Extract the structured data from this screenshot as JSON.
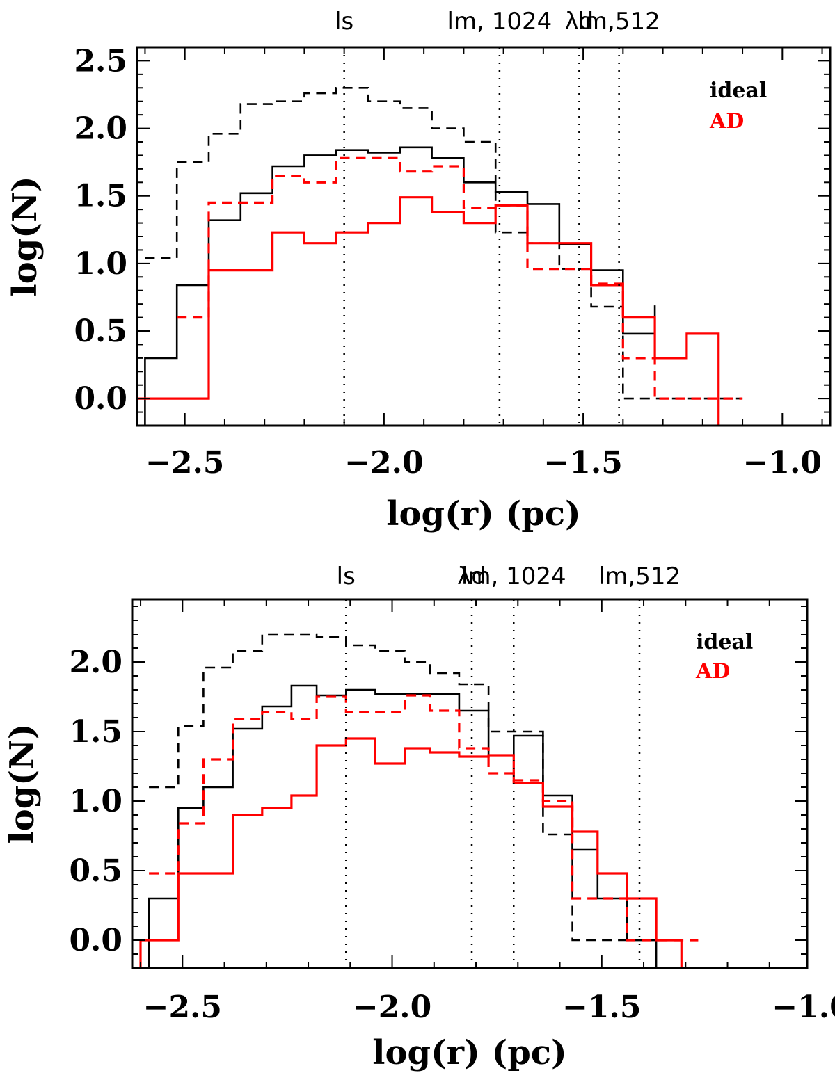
{
  "chart_data": [
    {
      "type": "histogram",
      "panel": "top",
      "xlabel": "log(r) (pc)",
      "ylabel": "log(N)",
      "xlim": [
        -2.62,
        -0.88
      ],
      "ylim": [
        -0.2,
        2.6
      ],
      "xticks": [
        -2.5,
        -2.0,
        -1.5,
        -1.0
      ],
      "xtick_labels": [
        "−2.5",
        "−2.0",
        "−1.5",
        "−1.0"
      ],
      "yticks": [
        0.0,
        0.5,
        1.0,
        1.5,
        2.0,
        2.5
      ],
      "ytick_labels": [
        "0.0",
        "0.5",
        "1.0",
        "1.5",
        "2.0",
        "2.5"
      ],
      "legend": [
        {
          "text": "ideal",
          "color": "#000000"
        },
        {
          "text": "AD",
          "color": "#ff0000"
        }
      ],
      "markers": [
        {
          "label": "ls",
          "x": -2.1
        },
        {
          "label": "lm, 1024",
          "x": -1.71
        },
        {
          "label": "λd",
          "x": -1.51
        },
        {
          "label": "lm,512",
          "x": -1.41
        }
      ],
      "series": [
        {
          "name": "ideal solid",
          "color": "#000000",
          "dash": "solid",
          "edges": [
            -2.6,
            -2.52,
            -2.44,
            -2.36,
            -2.28,
            -2.2,
            -2.12,
            -2.04,
            -1.96,
            -1.88,
            -1.8,
            -1.72,
            -1.64,
            -1.56,
            -1.48,
            -1.4,
            -1.32
          ],
          "values": [
            0.3,
            0.84,
            1.32,
            1.52,
            1.72,
            1.8,
            1.84,
            1.82,
            1.86,
            1.78,
            1.6,
            1.53,
            1.44,
            1.14,
            0.95,
            0.48,
            0.69
          ],
          "drop": -0.2
        },
        {
          "name": "ideal dashed",
          "color": "#000000",
          "dash": "dashed",
          "edges": [
            -2.6,
            -2.52,
            -2.44,
            -2.36,
            -2.28,
            -2.2,
            -2.12,
            -2.04,
            -1.96,
            -1.88,
            -1.8,
            -1.72,
            -1.64,
            -1.56,
            -1.48,
            -1.4,
            -1.32,
            -1.24,
            -1.16,
            -1.1
          ],
          "values": [
            1.04,
            1.75,
            1.96,
            2.18,
            2.2,
            2.26,
            2.3,
            2.2,
            2.15,
            2.0,
            1.9,
            1.23,
            1.15,
            0.96,
            0.68,
            0.0,
            0.0,
            0.0,
            0.0
          ]
        },
        {
          "name": "AD solid",
          "color": "#ff0000",
          "dash": "solid",
          "edges": [
            -2.62,
            -2.44,
            -2.36,
            -2.28,
            -2.2,
            -2.12,
            -2.04,
            -1.96,
            -1.88,
            -1.8,
            -1.72,
            -1.64,
            -1.56,
            -1.48,
            -1.4,
            -1.32,
            -1.24,
            -1.16
          ],
          "values": [
            0.0,
            0.95,
            0.95,
            1.23,
            1.15,
            1.23,
            1.3,
            1.49,
            1.38,
            1.3,
            1.43,
            1.15,
            1.15,
            0.84,
            0.6,
            0.3,
            0.48
          ],
          "drop": -0.2
        },
        {
          "name": "AD dashed",
          "color": "#ff0000",
          "dash": "dashed",
          "edges": [
            -2.52,
            -2.44,
            -2.36,
            -2.28,
            -2.2,
            -2.12,
            -2.04,
            -1.96,
            -1.88,
            -1.8,
            -1.72,
            -1.64,
            -1.56,
            -1.48,
            -1.4,
            -1.32,
            -1.24,
            -1.16,
            -1.1
          ],
          "values": [
            0.6,
            1.45,
            1.45,
            1.65,
            1.6,
            1.78,
            1.78,
            1.68,
            1.72,
            1.41,
            1.43,
            0.96,
            0.96,
            0.85,
            0.3,
            0.0,
            0.0,
            0.0
          ]
        }
      ]
    },
    {
      "type": "histogram",
      "panel": "bottom",
      "xlabel": "log(r) (pc)",
      "ylabel": "log(N)",
      "xlim": [
        -2.62,
        -1.01
      ],
      "ylim": [
        -0.2,
        2.45
      ],
      "xticks": [
        -2.5,
        -2.0,
        -1.5,
        -1.0
      ],
      "xtick_labels": [
        "−2.5",
        "−2.0",
        "−1.5",
        "−1.0"
      ],
      "yticks": [
        0.0,
        0.5,
        1.0,
        1.5,
        2.0
      ],
      "ytick_labels": [
        "0.0",
        "0.5",
        "1.0",
        "1.5",
        "2.0"
      ],
      "legend": [
        {
          "text": "ideal",
          "color": "#000000"
        },
        {
          "text": "AD",
          "color": "#ff0000"
        }
      ],
      "markers": [
        {
          "label": "ls",
          "x": -2.11
        },
        {
          "label": "λd",
          "x": -1.81
        },
        {
          "label": "lm, 1024",
          "x": -1.71
        },
        {
          "label": "lm,512",
          "x": -1.41
        }
      ],
      "series": [
        {
          "name": "ideal solid",
          "color": "#000000",
          "dash": "solid",
          "edges": [
            -2.58,
            -2.51,
            -2.45,
            -2.38,
            -2.31,
            -2.24,
            -2.18,
            -2.11,
            -2.04,
            -1.97,
            -1.91,
            -1.84,
            -1.77,
            -1.71,
            -1.64,
            -1.57,
            -1.51,
            -1.44,
            -1.37
          ],
          "values": [
            0.3,
            0.95,
            1.1,
            1.52,
            1.68,
            1.83,
            1.76,
            1.8,
            1.77,
            1.77,
            1.77,
            1.65,
            1.33,
            1.47,
            1.04,
            0.65,
            0.3,
            0.0
          ],
          "drop": -0.2
        },
        {
          "name": "ideal dashed",
          "color": "#000000",
          "dash": "dashed",
          "edges": [
            -2.58,
            -2.51,
            -2.45,
            -2.38,
            -2.31,
            -2.24,
            -2.18,
            -2.11,
            -2.04,
            -1.97,
            -1.91,
            -1.84,
            -1.77,
            -1.71,
            -1.64,
            -1.57,
            -1.51,
            -1.44,
            -1.37
          ],
          "values": [
            1.1,
            1.54,
            1.96,
            2.08,
            2.2,
            2.2,
            2.18,
            2.12,
            2.08,
            2.0,
            1.92,
            1.84,
            1.5,
            1.5,
            0.76,
            0.0,
            0.0,
            0.0
          ]
        },
        {
          "name": "AD solid",
          "color": "#ff0000",
          "dash": "solid",
          "edges": [
            -2.6,
            -2.51,
            -2.38,
            -2.31,
            -2.24,
            -2.18,
            -2.11,
            -2.04,
            -1.97,
            -1.91,
            -1.84,
            -1.77,
            -1.71,
            -1.64,
            -1.57,
            -1.51,
            -1.44,
            -1.37,
            -1.31
          ],
          "values": [
            0.0,
            0.48,
            0.9,
            0.95,
            1.04,
            1.4,
            1.45,
            1.27,
            1.38,
            1.35,
            1.32,
            1.33,
            1.13,
            0.96,
            0.78,
            0.48,
            0.3,
            0.0
          ],
          "drop": -0.2
        },
        {
          "name": "AD dashed",
          "color": "#ff0000",
          "dash": "dashed",
          "edges": [
            -2.58,
            -2.51,
            -2.45,
            -2.38,
            -2.31,
            -2.24,
            -2.18,
            -2.11,
            -2.04,
            -1.97,
            -1.91,
            -1.84,
            -1.77,
            -1.71,
            -1.64,
            -1.57,
            -1.51,
            -1.44,
            -1.37,
            -1.31,
            -1.27
          ],
          "values": [
            0.48,
            0.84,
            1.3,
            1.59,
            1.64,
            1.59,
            1.75,
            1.64,
            1.64,
            1.76,
            1.65,
            1.38,
            1.2,
            1.15,
            1.0,
            0.3,
            0.3,
            0.0,
            0.0,
            0.0
          ]
        }
      ]
    }
  ]
}
